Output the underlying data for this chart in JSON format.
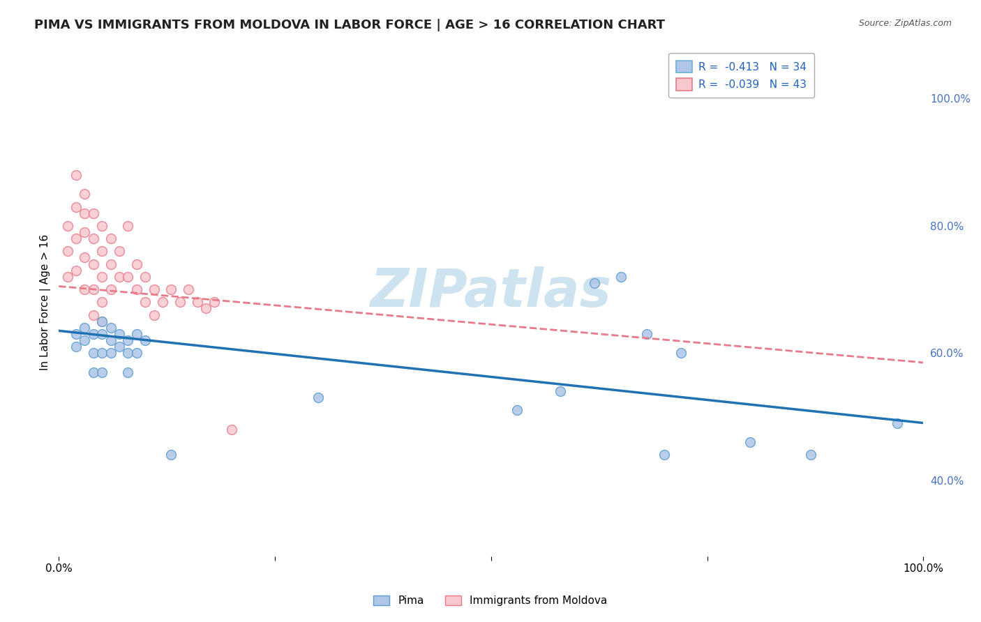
{
  "title": "PIMA VS IMMIGRANTS FROM MOLDOVA IN LABOR FORCE | AGE > 16 CORRELATION CHART",
  "source_text": "Source: ZipAtlas.com",
  "ylabel": "In Labor Force | Age > 16",
  "xlim": [
    0.0,
    1.0
  ],
  "ylim": [
    0.28,
    1.08
  ],
  "y_ticks_right": [
    1.0,
    0.8,
    0.6,
    0.4
  ],
  "y_tick_labels_right": [
    "100.0%",
    "80.0%",
    "60.0%",
    "40.0%"
  ],
  "legend_entries": [
    {
      "label": "R =  -0.413   N = 34",
      "facecolor": "#aec6e8",
      "edgecolor": "#6baed6"
    },
    {
      "label": "R =  -0.039   N = 43",
      "facecolor": "#f9c8cf",
      "edgecolor": "#e87a8a"
    }
  ],
  "pima": {
    "name": "Pima",
    "facecolor": "#aec6e8",
    "edgecolor": "#5b9dce",
    "scatter_x": [
      0.02,
      0.02,
      0.03,
      0.03,
      0.04,
      0.04,
      0.04,
      0.05,
      0.05,
      0.05,
      0.05,
      0.06,
      0.06,
      0.06,
      0.07,
      0.07,
      0.08,
      0.08,
      0.08,
      0.09,
      0.09,
      0.1,
      0.13,
      0.3,
      0.53,
      0.58,
      0.62,
      0.65,
      0.68,
      0.7,
      0.72,
      0.8,
      0.87,
      0.97
    ],
    "scatter_y": [
      0.63,
      0.61,
      0.64,
      0.62,
      0.63,
      0.6,
      0.57,
      0.65,
      0.63,
      0.6,
      0.57,
      0.64,
      0.62,
      0.6,
      0.63,
      0.61,
      0.62,
      0.6,
      0.57,
      0.63,
      0.6,
      0.62,
      0.44,
      0.53,
      0.51,
      0.54,
      0.71,
      0.72,
      0.63,
      0.44,
      0.6,
      0.46,
      0.44,
      0.49
    ],
    "trend_x": [
      0.0,
      1.0
    ],
    "trend_y": [
      0.635,
      0.49
    ],
    "trend_color": "#2171b5",
    "trend_linestyle": "-",
    "trend_linewidth": 2.5
  },
  "moldova": {
    "name": "Immigrants from Moldova",
    "facecolor": "#f9c8cf",
    "edgecolor": "#e87a8a",
    "scatter_x": [
      0.01,
      0.01,
      0.01,
      0.02,
      0.02,
      0.02,
      0.02,
      0.03,
      0.03,
      0.03,
      0.03,
      0.03,
      0.04,
      0.04,
      0.04,
      0.04,
      0.04,
      0.05,
      0.05,
      0.05,
      0.05,
      0.05,
      0.06,
      0.06,
      0.06,
      0.07,
      0.07,
      0.08,
      0.08,
      0.09,
      0.09,
      0.1,
      0.1,
      0.11,
      0.11,
      0.12,
      0.13,
      0.14,
      0.15,
      0.16,
      0.17,
      0.18,
      0.2
    ],
    "scatter_y": [
      0.8,
      0.76,
      0.72,
      0.88,
      0.83,
      0.78,
      0.73,
      0.85,
      0.82,
      0.79,
      0.75,
      0.7,
      0.82,
      0.78,
      0.74,
      0.7,
      0.66,
      0.8,
      0.76,
      0.72,
      0.68,
      0.65,
      0.78,
      0.74,
      0.7,
      0.76,
      0.72,
      0.8,
      0.72,
      0.74,
      0.7,
      0.72,
      0.68,
      0.7,
      0.66,
      0.68,
      0.7,
      0.68,
      0.7,
      0.68,
      0.67,
      0.68,
      0.48
    ],
    "trend_x": [
      0.0,
      1.0
    ],
    "trend_y": [
      0.705,
      0.585
    ],
    "trend_color": "#e87a8a",
    "trend_linestyle": "--",
    "trend_linewidth": 2.0
  },
  "background_color": "#ffffff",
  "grid_color": "#c8c8c8",
  "watermark_text": "ZIPatlas",
  "watermark_color": "#cde3f0",
  "title_fontsize": 13,
  "tick_fontsize": 11,
  "ylabel_fontsize": 11
}
